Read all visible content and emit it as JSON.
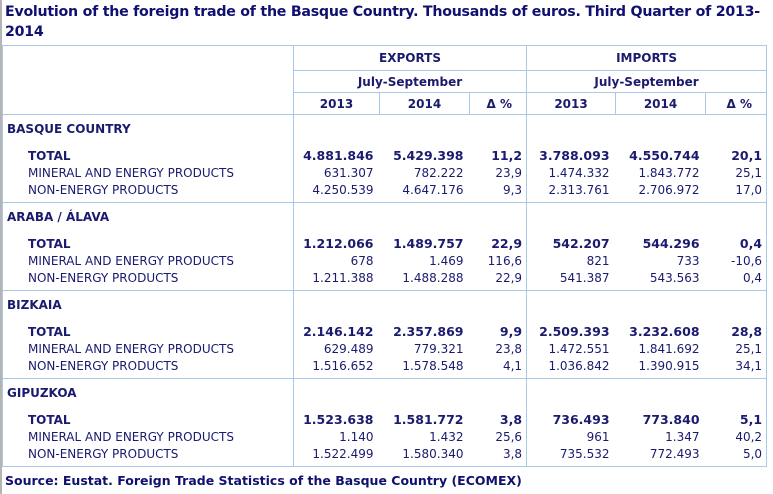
{
  "title": "Evolution of the foreign trade of the Basque Country.  Thousands of euros. Third Quarter of 2013-2014",
  "header": {
    "exports": "EXPORTS",
    "imports": "IMPORTS",
    "period_exports": "July-September",
    "period_imports": "July-September",
    "cols": [
      "2013",
      "2014",
      "Δ %",
      "2013",
      "2014",
      "Δ %"
    ]
  },
  "sections": [
    {
      "region": "BASQUE COUNTRY",
      "rows": [
        {
          "label": "TOTAL",
          "values": [
            "4.881.846",
            "5.429.398",
            "11,2",
            "3.788.093",
            "4.550.744",
            "20,1"
          ]
        },
        {
          "label": "MINERAL AND ENERGY PRODUCTS",
          "values": [
            "631.307",
            "782.222",
            "23,9",
            "1.474.332",
            "1.843.772",
            "25,1"
          ]
        },
        {
          "label": "NON-ENERGY PRODUCTS",
          "values": [
            "4.250.539",
            "4.647.176",
            "9,3",
            "2.313.761",
            "2.706.972",
            "17,0"
          ]
        }
      ]
    },
    {
      "region": "ARABA / ÁLAVA",
      "rows": [
        {
          "label": "TOTAL",
          "values": [
            "1.212.066",
            "1.489.757",
            "22,9",
            "542.207",
            "544.296",
            "0,4"
          ]
        },
        {
          "label": "MINERAL AND ENERGY PRODUCTS",
          "values": [
            "678",
            "1.469",
            "116,6",
            "821",
            "733",
            "-10,6"
          ]
        },
        {
          "label": "NON-ENERGY PRODUCTS",
          "values": [
            "1.211.388",
            "1.488.288",
            "22,9",
            "541.387",
            "543.563",
            "0,4"
          ]
        }
      ]
    },
    {
      "region": "BIZKAIA",
      "rows": [
        {
          "label": "TOTAL",
          "values": [
            "2.146.142",
            "2.357.869",
            "9,9",
            "2.509.393",
            "3.232.608",
            "28,8"
          ]
        },
        {
          "label": "MINERAL AND ENERGY PRODUCTS",
          "values": [
            "629.489",
            "779.321",
            "23,8",
            "1.472.551",
            "1.841.692",
            "25,1"
          ]
        },
        {
          "label": "NON-ENERGY PRODUCTS",
          "values": [
            "1.516.652",
            "1.578.548",
            "4,1",
            "1.036.842",
            "1.390.915",
            "34,1"
          ]
        }
      ]
    },
    {
      "region": "GIPUZKOA",
      "rows": [
        {
          "label": "TOTAL",
          "values": [
            "1.523.638",
            "1.581.772",
            "3,8",
            "736.493",
            "773.840",
            "5,1"
          ]
        },
        {
          "label": "MINERAL AND ENERGY PRODUCTS",
          "values": [
            "1.140",
            "1.432",
            "25,6",
            "961",
            "1.347",
            "40,2"
          ]
        },
        {
          "label": "NON-ENERGY PRODUCTS",
          "values": [
            "1.522.499",
            "1.580.340",
            "3,8",
            "735.532",
            "772.493",
            "5,0"
          ]
        }
      ]
    }
  ],
  "source": "Source: Eustat. Foreign Trade Statistics of the Basque Country (ECOMEX)",
  "colors": {
    "text": "#1a1a6e",
    "border": "#a9c9e6",
    "page_edge": "#b4b4b4"
  }
}
